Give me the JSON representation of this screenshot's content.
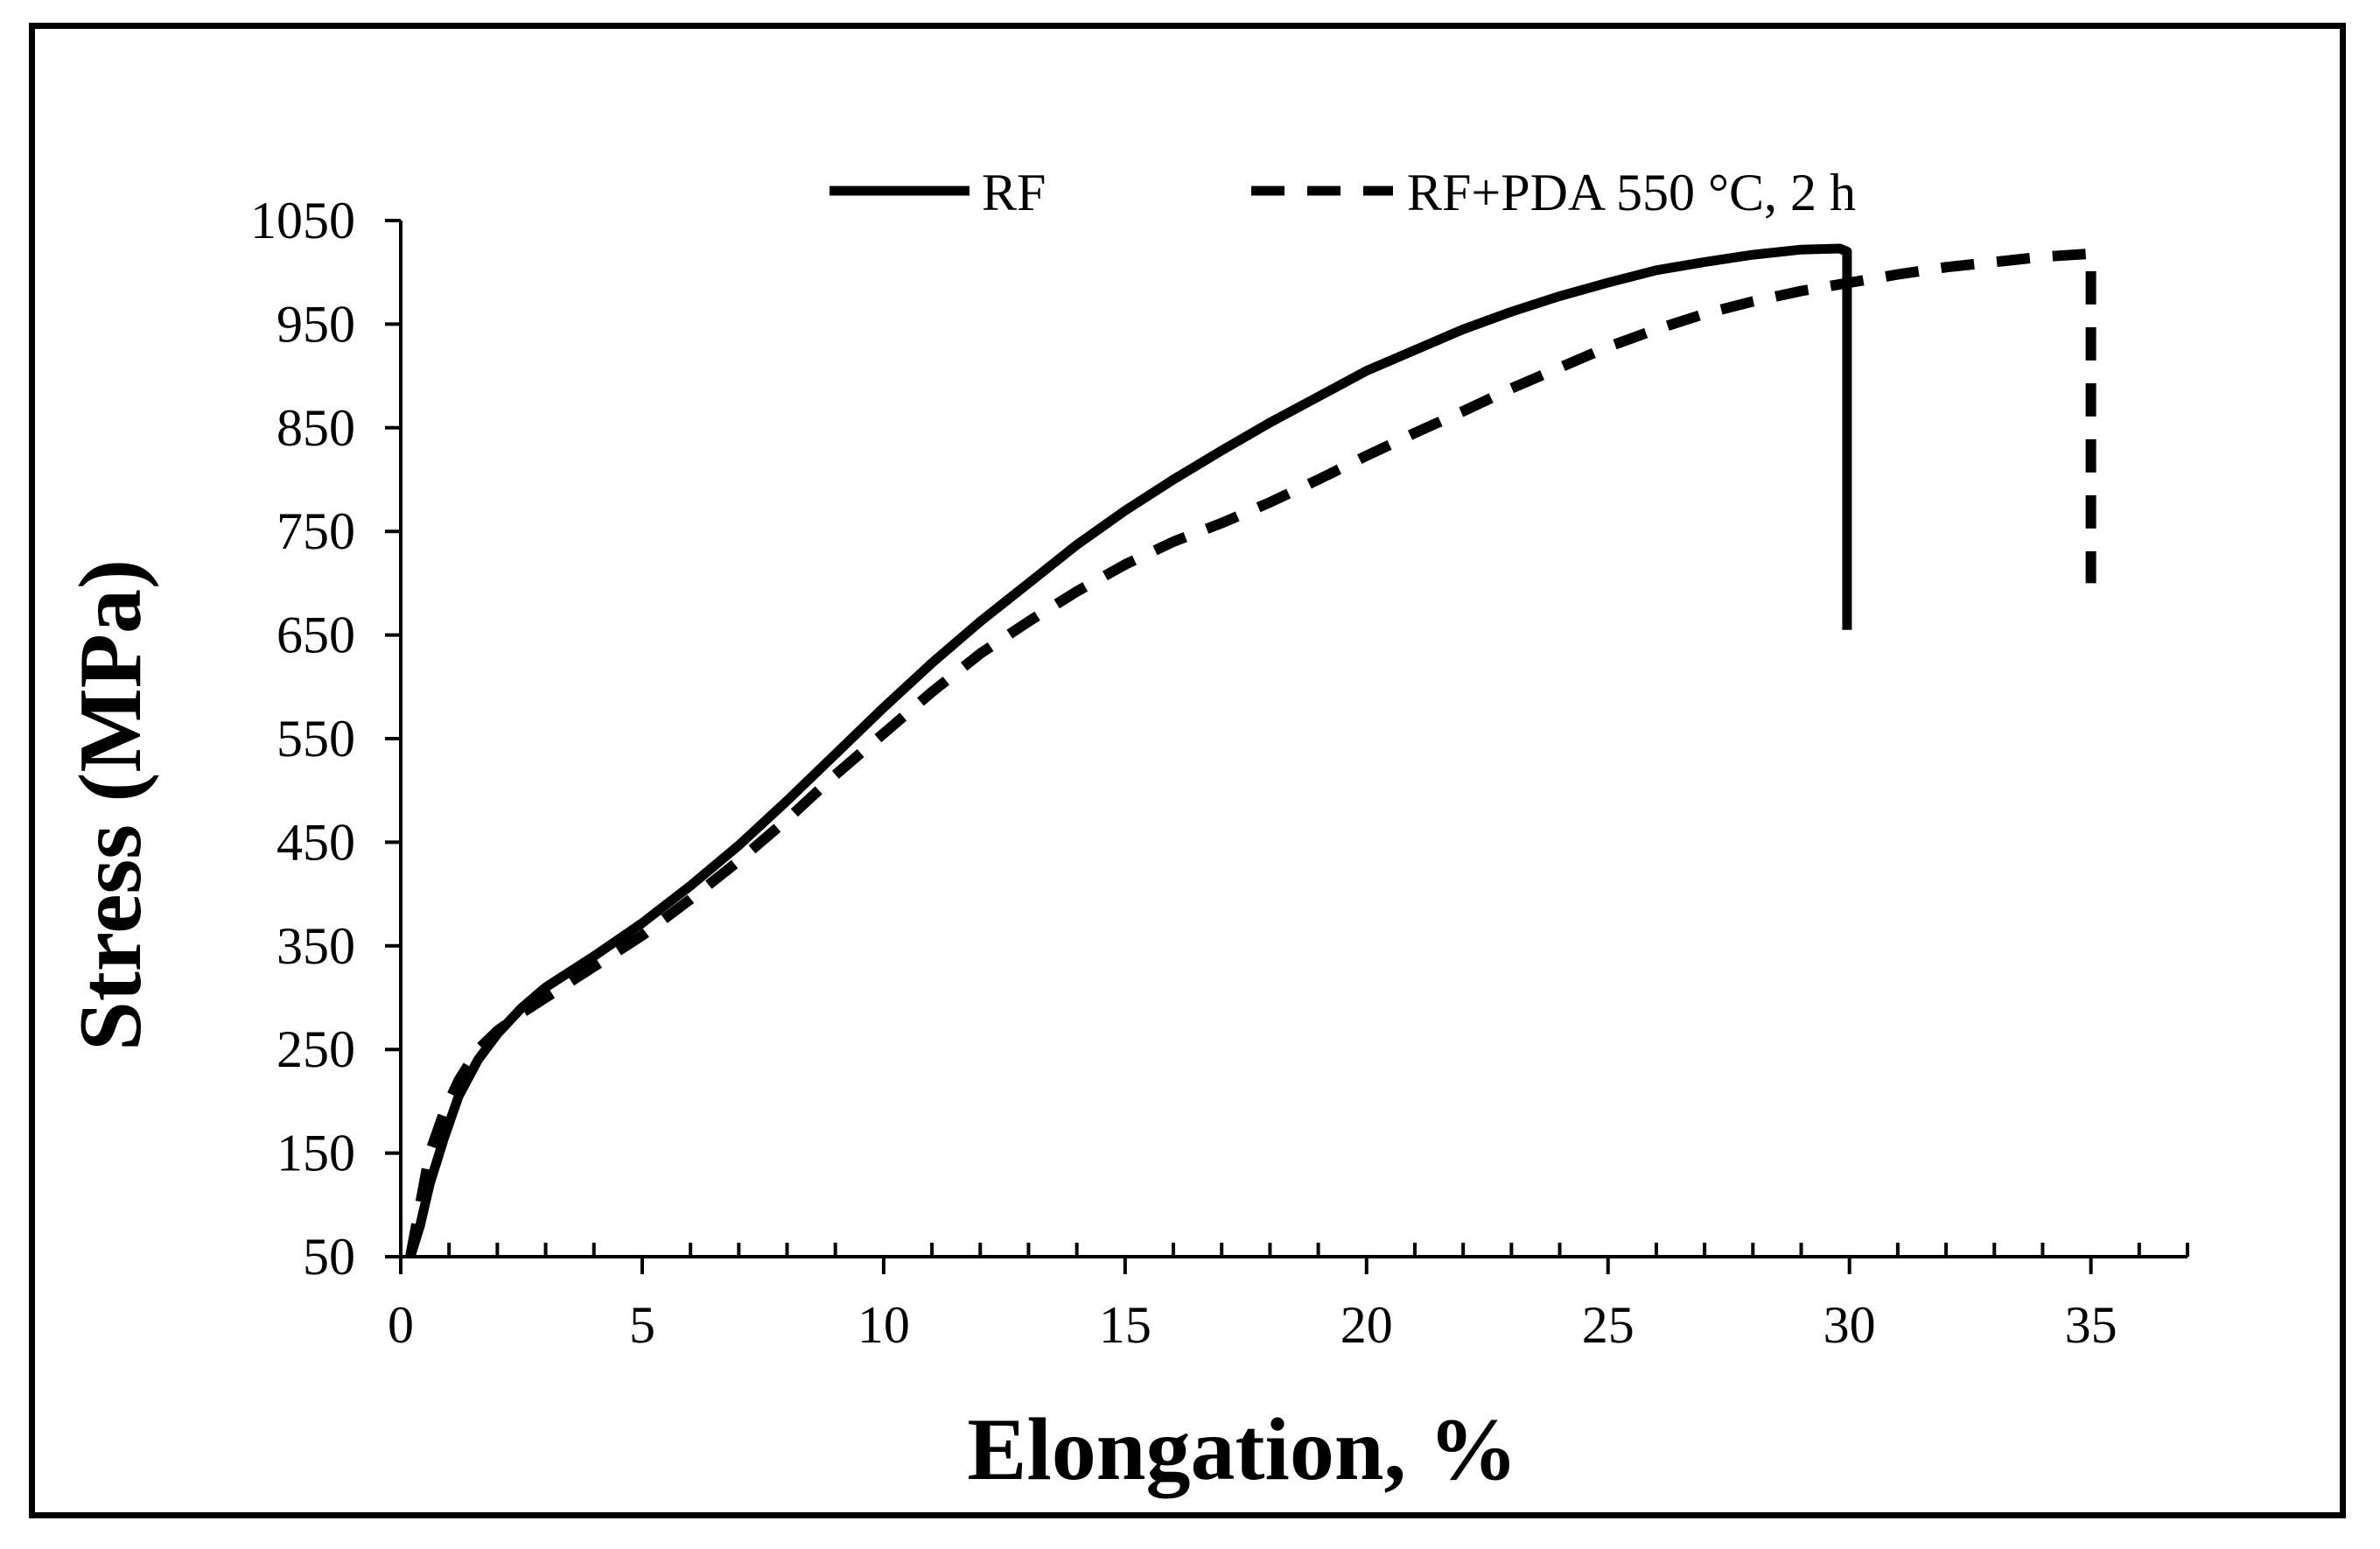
{
  "chart_data": {
    "type": "line",
    "title": "",
    "xlabel": "Elongation, %",
    "ylabel": "Stress (MPa)",
    "xlim": [
      0,
      37
    ],
    "ylim": [
      50,
      1050
    ],
    "xticks": [
      0,
      5,
      10,
      15,
      20,
      25,
      30,
      35
    ],
    "yticks": [
      50,
      150,
      250,
      350,
      450,
      550,
      650,
      750,
      850,
      950,
      1050
    ],
    "x_tick_labels": [
      "0",
      "5",
      "10",
      "15",
      "20",
      "25",
      "30",
      "35"
    ],
    "y_tick_labels": [
      "50",
      "150",
      "250",
      "350",
      "450",
      "550",
      "650",
      "750",
      "850",
      "950",
      "1050"
    ],
    "legend_position": "top",
    "series": [
      {
        "name": "RF",
        "style": "solid",
        "color": "#000000",
        "x": [
          0.2,
          0.4,
          0.6,
          0.9,
          1.2,
          1.6,
          2.0,
          2.5,
          3.0,
          4.0,
          5.0,
          6.0,
          7.0,
          8.0,
          9.0,
          10.0,
          11.0,
          12.0,
          13.0,
          14.0,
          15.0,
          16.0,
          17.0,
          18.0,
          19.0,
          20.0,
          21.0,
          22.0,
          23.0,
          24.0,
          25.0,
          26.0,
          27.0,
          28.0,
          29.0,
          29.8,
          29.95,
          29.95
        ],
        "y": [
          50,
          80,
          120,
          165,
          205,
          240,
          265,
          290,
          310,
          340,
          372,
          408,
          447,
          490,
          535,
          580,
          623,
          663,
          700,
          737,
          770,
          800,
          828,
          855,
          880,
          905,
          925,
          945,
          962,
          977,
          990,
          1002,
          1010,
          1017,
          1022,
          1023,
          1020,
          655
        ]
      },
      {
        "name": "RF+PDA 550 °C, 2 h",
        "style": "dashed",
        "color": "#000000",
        "x": [
          0.2,
          0.4,
          0.6,
          0.9,
          1.2,
          1.6,
          2.0,
          2.5,
          3.0,
          4.0,
          5.0,
          6.0,
          7.0,
          8.0,
          9.0,
          10.0,
          11.0,
          12.0,
          13.0,
          14.0,
          15.0,
          16.0,
          17.0,
          18.0,
          19.0,
          20.0,
          21.0,
          22.0,
          23.0,
          24.0,
          25.0,
          26.0,
          27.0,
          28.0,
          29.0,
          30.0,
          31.0,
          32.0,
          33.0,
          34.0,
          35.0,
          35.0
        ],
        "y": [
          50,
          100,
          150,
          190,
          220,
          250,
          268,
          285,
          300,
          330,
          360,
          395,
          432,
          472,
          515,
          555,
          595,
          632,
          663,
          692,
          718,
          740,
          758,
          778,
          800,
          823,
          845,
          866,
          888,
          908,
          928,
          945,
          960,
          972,
          982,
          990,
          998,
          1005,
          1010,
          1015,
          1018,
          700
        ]
      }
    ]
  }
}
